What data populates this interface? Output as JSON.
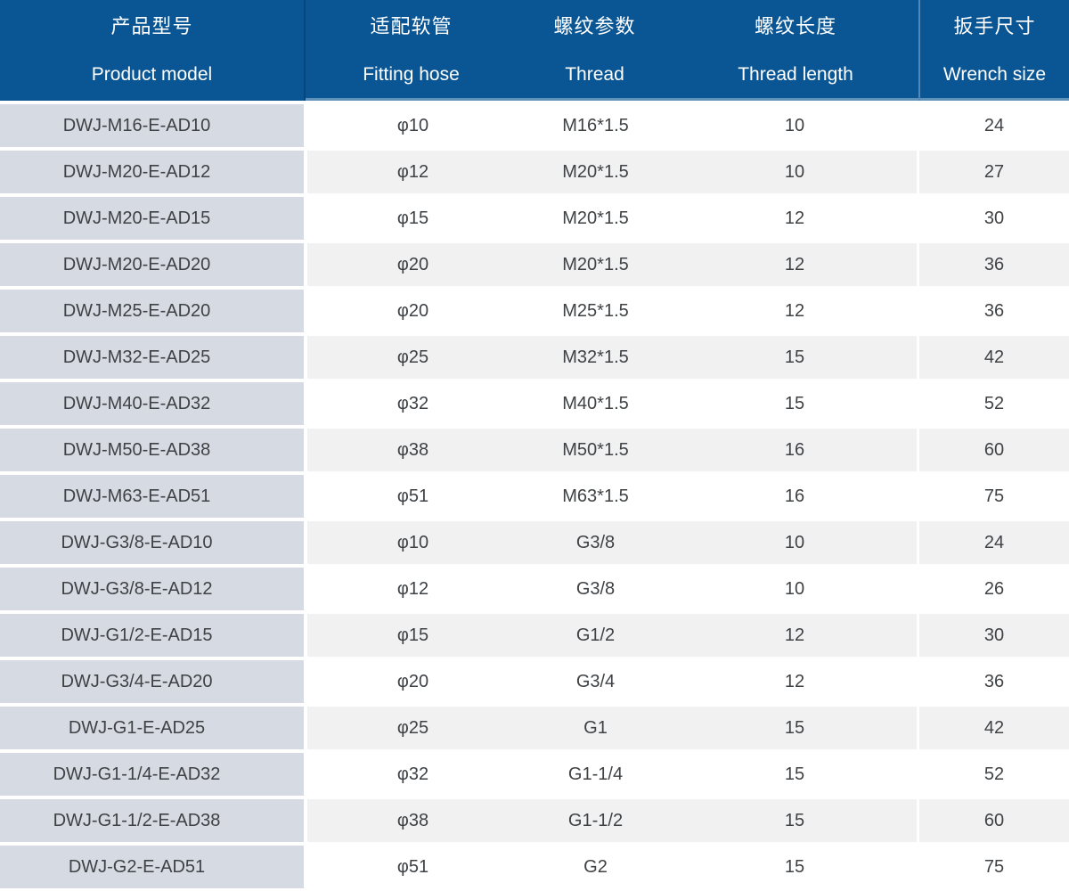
{
  "table": {
    "columns": [
      {
        "zh": "产品型号",
        "en": "Product model"
      },
      {
        "zh": "适配软管",
        "en": "Fitting hose"
      },
      {
        "zh": "螺纹参数",
        "en": "Thread"
      },
      {
        "zh": "螺纹长度",
        "en": "Thread length"
      },
      {
        "zh": "扳手尺寸",
        "en": "Wrench size"
      }
    ],
    "rows": [
      [
        "DWJ-M16-E-AD10",
        "φ10",
        "M16*1.5",
        "10",
        "24"
      ],
      [
        "DWJ-M20-E-AD12",
        "φ12",
        "M20*1.5",
        "10",
        "27"
      ],
      [
        "DWJ-M20-E-AD15",
        "φ15",
        "M20*1.5",
        "12",
        "30"
      ],
      [
        "DWJ-M20-E-AD20",
        "φ20",
        "M20*1.5",
        "12",
        "36"
      ],
      [
        "DWJ-M25-E-AD20",
        "φ20",
        "M25*1.5",
        "12",
        "36"
      ],
      [
        "DWJ-M32-E-AD25",
        "φ25",
        "M32*1.5",
        "15",
        "42"
      ],
      [
        "DWJ-M40-E-AD32",
        "φ32",
        "M40*1.5",
        "15",
        "52"
      ],
      [
        "DWJ-M50-E-AD38",
        "φ38",
        "M50*1.5",
        "16",
        "60"
      ],
      [
        "DWJ-M63-E-AD51",
        "φ51",
        "M63*1.5",
        "16",
        "75"
      ],
      [
        "DWJ-G3/8-E-AD10",
        "φ10",
        "G3/8",
        "10",
        "24"
      ],
      [
        "DWJ-G3/8-E-AD12",
        "φ12",
        "G3/8",
        "10",
        "26"
      ],
      [
        "DWJ-G1/2-E-AD15",
        "φ15",
        "G1/2",
        "12",
        "30"
      ],
      [
        "DWJ-G3/4-E-AD20",
        "φ20",
        "G3/4",
        "12",
        "36"
      ],
      [
        "DWJ-G1-E-AD25",
        "φ25",
        "G1",
        "15",
        "42"
      ],
      [
        "DWJ-G1-1/4-E-AD32",
        "φ32",
        "G1-1/4",
        "15",
        "52"
      ],
      [
        "DWJ-G1-1/2-E-AD38",
        "φ38",
        "G1-1/2",
        "15",
        "60"
      ],
      [
        "DWJ-G2-E-AD51",
        "φ51",
        "G2",
        "15",
        "75"
      ]
    ]
  },
  "colors": {
    "header_bg": "#0a5694",
    "header_text": "#ffffff",
    "model_col_bg": "#d6dbe3",
    "alt_row_bg": "#f1f1f2",
    "row_bg": "#ffffff",
    "text": "#3f4245"
  }
}
